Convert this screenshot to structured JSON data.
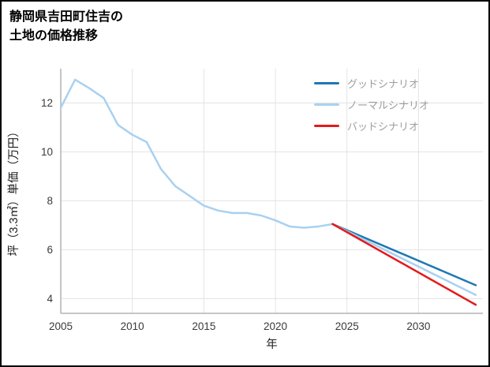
{
  "page": {
    "title_line1": "静岡県吉田町住吉の",
    "title_line2": "土地の価格推移"
  },
  "chart_data": {
    "type": "line",
    "title": "静岡県吉田町住吉の土地の価格推移",
    "xlabel": "年",
    "ylabel": "坪（3.3㎡）単価（万円）",
    "xlim": [
      2005,
      2034.5
    ],
    "ylim": [
      3.4,
      13.4
    ],
    "xticks": [
      2005,
      2010,
      2015,
      2020,
      2025,
      2030
    ],
    "yticks": [
      4,
      6,
      8,
      10,
      12
    ],
    "grid": true,
    "legend_position": "top-right",
    "colors": {
      "grid": "#e3e3e3",
      "axis": "#b3b3b3",
      "tick_text": "#3a3a3a",
      "legend_text": "#9e9e9e",
      "good": "#1f77b4",
      "normal": "#a9d1f0",
      "bad": "#e41a1c"
    },
    "series": [
      {
        "color": "#a9d1f0",
        "width": 2.5,
        "x": [
          2005,
          2006,
          2007,
          2008,
          2009,
          2010,
          2011,
          2012,
          2013,
          2014,
          2015,
          2016,
          2017,
          2018,
          2019,
          2020,
          2021,
          2022,
          2023,
          2024
        ],
        "y": [
          11.8,
          12.95,
          12.6,
          12.2,
          11.1,
          10.7,
          10.4,
          9.3,
          8.6,
          8.2,
          7.8,
          7.6,
          7.5,
          7.5,
          7.4,
          7.2,
          6.95,
          6.9,
          6.95,
          7.05
        ]
      },
      {
        "name": "グッドシナリオ",
        "color": "#1f77b4",
        "width": 2.5,
        "x": [
          2024,
          2034
        ],
        "y": [
          7.05,
          4.55
        ]
      },
      {
        "name": "ノーマルシナリオ",
        "color": "#a9d1f0",
        "width": 2.5,
        "x": [
          2024,
          2034
        ],
        "y": [
          7.05,
          4.15
        ]
      },
      {
        "name": "バッドシナリオ",
        "color": "#e41a1c",
        "width": 2.5,
        "x": [
          2024,
          2034
        ],
        "y": [
          7.05,
          3.75
        ]
      }
    ],
    "legend": [
      {
        "label": "グッドシナリオ",
        "color": "#1f77b4"
      },
      {
        "label": "ノーマルシナリオ",
        "color": "#a9d1f0"
      },
      {
        "label": "バッドシナリオ",
        "color": "#e41a1c"
      }
    ]
  }
}
